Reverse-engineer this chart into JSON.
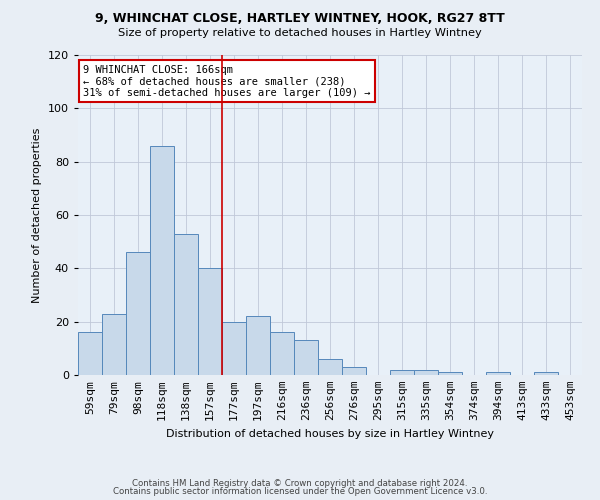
{
  "title1": "9, WHINCHAT CLOSE, HARTLEY WINTNEY, HOOK, RG27 8TT",
  "title2": "Size of property relative to detached houses in Hartley Wintney",
  "xlabel": "Distribution of detached houses by size in Hartley Wintney",
  "ylabel": "Number of detached properties",
  "categories": [
    "59sqm",
    "79sqm",
    "98sqm",
    "118sqm",
    "138sqm",
    "157sqm",
    "177sqm",
    "197sqm",
    "216sqm",
    "236sqm",
    "256sqm",
    "276sqm",
    "295sqm",
    "315sqm",
    "335sqm",
    "354sqm",
    "374sqm",
    "394sqm",
    "413sqm",
    "433sqm",
    "453sqm"
  ],
  "values": [
    16,
    23,
    46,
    86,
    53,
    40,
    20,
    22,
    16,
    13,
    6,
    3,
    0,
    2,
    2,
    1,
    0,
    1,
    0,
    1,
    0
  ],
  "bar_color": "#c8d9ea",
  "bar_edge_color": "#5588bb",
  "vline_x": 5.5,
  "vline_color": "#cc0000",
  "annotation_text": "9 WHINCHAT CLOSE: 166sqm\n← 68% of detached houses are smaller (238)\n31% of semi-detached houses are larger (109) →",
  "annotation_box_color": "white",
  "annotation_box_edge_color": "#cc0000",
  "ylim": [
    0,
    120
  ],
  "yticks": [
    0,
    20,
    40,
    60,
    80,
    100,
    120
  ],
  "footer1": "Contains HM Land Registry data © Crown copyright and database right 2024.",
  "footer2": "Contains public sector information licensed under the Open Government Licence v3.0.",
  "bg_color": "#e8eef5",
  "plot_bg_color": "#e8f0f8",
  "grid_color": "#c0c8d8"
}
